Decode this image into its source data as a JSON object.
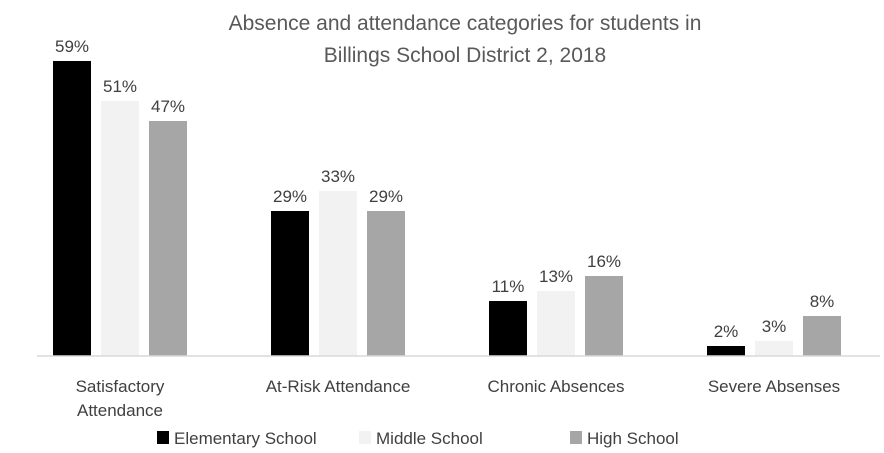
{
  "chart_data": {
    "type": "bar",
    "title_lines": [
      "Absence and attendance categories for students in",
      "Billings School District 2, 2018"
    ],
    "categories": [
      [
        "Satisfactory",
        "Attendance"
      ],
      [
        "At-Risk Attendance"
      ],
      [
        "Chronic Absences"
      ],
      [
        "Severe Absenses"
      ]
    ],
    "series": [
      {
        "name": "Elementary School",
        "color": "#000000",
        "values": [
          59,
          29,
          11,
          2
        ],
        "labels": [
          "59%",
          "29%",
          "11%",
          "2%"
        ]
      },
      {
        "name": "Middle School",
        "color": "#f2f2f2",
        "values": [
          51,
          33,
          13,
          3
        ],
        "labels": [
          "51%",
          "33%",
          "13%",
          "3%"
        ]
      },
      {
        "name": "High School",
        "color": "#a6a6a6",
        "values": [
          47,
          29,
          16,
          8
        ],
        "labels": [
          "47%",
          "29%",
          "16%",
          "8%"
        ]
      }
    ],
    "ylim": [
      0,
      60
    ],
    "grid": false,
    "legend_position": "bottom"
  }
}
